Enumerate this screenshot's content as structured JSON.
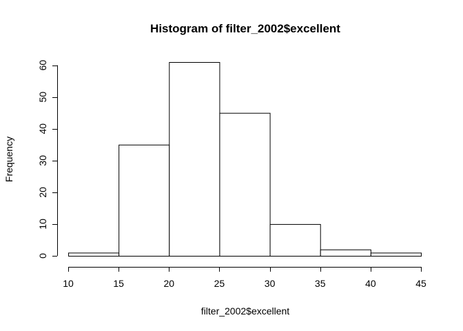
{
  "chart_data": {
    "type": "bar",
    "title": "Histogram of filter_2002$excellent",
    "xlabel": "filter_2002$excellent",
    "ylabel": "Frequency",
    "bins": [
      {
        "from": 10,
        "to": 15,
        "count": 1
      },
      {
        "from": 15,
        "to": 20,
        "count": 35
      },
      {
        "from": 20,
        "to": 25,
        "count": 61
      },
      {
        "from": 25,
        "to": 30,
        "count": 45
      },
      {
        "from": 30,
        "to": 35,
        "count": 10
      },
      {
        "from": 35,
        "to": 40,
        "count": 2
      },
      {
        "from": 40,
        "to": 45,
        "count": 1
      }
    ],
    "xlim": [
      10,
      45
    ],
    "ylim": [
      0,
      61
    ],
    "x_ticks": [
      10,
      15,
      20,
      25,
      30,
      35,
      40,
      45
    ],
    "y_ticks": [
      0,
      10,
      20,
      30,
      40,
      50,
      60
    ],
    "grid": false
  }
}
